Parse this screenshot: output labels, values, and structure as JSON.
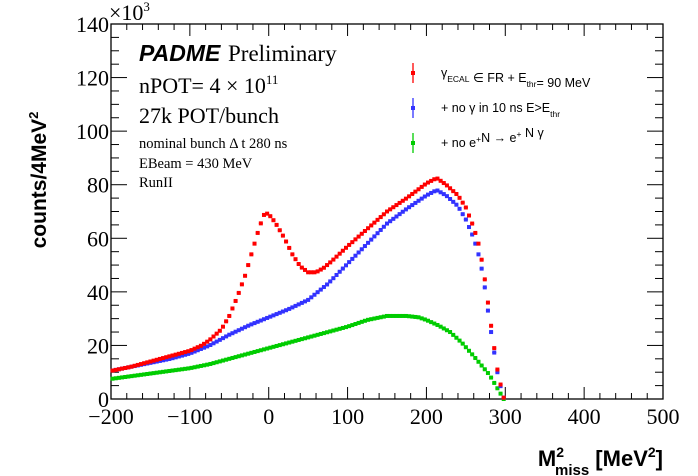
{
  "chart_data": {
    "type": "scatter",
    "title": "",
    "xlabel": {
      "main": "M",
      "sup": "2",
      "sub": "miss",
      "unit_prefix": " [MeV",
      "unit_sup": "2",
      "unit_suffix": "]"
    },
    "ylabel": "counts/4MeV²",
    "ylabel_parts": {
      "main": "counts/4MeV",
      "sup": "2"
    },
    "y_multiplier": {
      "prefix": "×10",
      "exp": "3"
    },
    "xlim": [
      -200,
      500
    ],
    "ylim": [
      0,
      140
    ],
    "x_ticks": [
      "−200",
      "−100",
      "0",
      "100",
      "200",
      "300",
      "400",
      "500"
    ],
    "x_tick_values": [
      -200,
      -100,
      0,
      100,
      200,
      300,
      400,
      500
    ],
    "y_ticks": [
      "0",
      "20",
      "40",
      "60",
      "80",
      "100",
      "120",
      "140"
    ],
    "y_tick_values": [
      0,
      20,
      40,
      60,
      80,
      100,
      120,
      140
    ],
    "grid": false,
    "bin_width": 4,
    "annotations": {
      "experiment": "PADME",
      "status": "Preliminary",
      "npot_prefix": "nPOT= 4 × 10",
      "npot_exp": "11",
      "pot_per_bunch": "27k POT/bunch",
      "bunch_length": "nominal bunch Δ t 280 ns",
      "ebeam": "EBeam = 430 MeV",
      "run": "RunII"
    },
    "legend_position": "top-right",
    "series": [
      {
        "name": "γ_ECAL ∈ FR + E_thr= 90 MeV",
        "color": "#ff0000",
        "legend": {
          "parts": [
            [
              "γ",
              ""
            ],
            [
              "ECAL",
              "sub"
            ],
            [
              " ∈ FR + E",
              ""
            ],
            [
              "thr",
              "sub"
            ],
            [
              "= 90 MeV",
              ""
            ]
          ]
        },
        "anchors": [
          [
            -200,
            10.5
          ],
          [
            -175,
            12
          ],
          [
            -150,
            14
          ],
          [
            -125,
            16
          ],
          [
            -100,
            18
          ],
          [
            -85,
            20
          ],
          [
            -75,
            22
          ],
          [
            -60,
            26
          ],
          [
            -50,
            31
          ],
          [
            -40,
            38
          ],
          [
            -30,
            46
          ],
          [
            -20,
            56
          ],
          [
            -12,
            64
          ],
          [
            -5,
            69.5
          ],
          [
            0,
            69
          ],
          [
            8,
            66
          ],
          [
            20,
            60
          ],
          [
            30,
            54
          ],
          [
            40,
            49.5
          ],
          [
            50,
            47.3
          ],
          [
            60,
            47.3
          ],
          [
            70,
            49
          ],
          [
            80,
            51.5
          ],
          [
            100,
            57
          ],
          [
            125,
            63.5
          ],
          [
            150,
            70
          ],
          [
            175,
            75
          ],
          [
            200,
            80.5
          ],
          [
            213,
            82.5
          ],
          [
            225,
            80
          ],
          [
            240,
            76
          ],
          [
            250,
            71.5
          ],
          [
            260,
            64
          ],
          [
            266,
            58
          ],
          [
            272,
            49
          ],
          [
            278,
            36
          ],
          [
            284,
            23
          ],
          [
            290,
            11
          ],
          [
            295,
            4
          ],
          [
            298,
            0.5
          ]
        ]
      },
      {
        "name": "+ no γ in 10 ns E>E_thr",
        "color": "#3333ff",
        "legend": {
          "parts": [
            [
              "+ no γ in 10 ns E>E",
              ""
            ],
            [
              "thr",
              "sub"
            ]
          ]
        },
        "anchors": [
          [
            -200,
            10.5
          ],
          [
            -175,
            12
          ],
          [
            -150,
            13.5
          ],
          [
            -125,
            15
          ],
          [
            -100,
            17
          ],
          [
            -75,
            20
          ],
          [
            -50,
            24
          ],
          [
            -25,
            27.5
          ],
          [
            0,
            30.5
          ],
          [
            25,
            33.5
          ],
          [
            50,
            37
          ],
          [
            75,
            43
          ],
          [
            100,
            50.5
          ],
          [
            125,
            58
          ],
          [
            150,
            65.5
          ],
          [
            175,
            71
          ],
          [
            200,
            76
          ],
          [
            213,
            78
          ],
          [
            225,
            76
          ],
          [
            240,
            72
          ],
          [
            250,
            67
          ],
          [
            260,
            60
          ],
          [
            266,
            54
          ],
          [
            272,
            46
          ],
          [
            278,
            33
          ],
          [
            284,
            21
          ],
          [
            290,
            10
          ],
          [
            295,
            3.5
          ],
          [
            298,
            0.5
          ]
        ]
      },
      {
        "name": "+ no e⁺N → e⁺ N γ",
        "color": "#00cc00",
        "legend": {
          "parts": [
            [
              "+ no e",
              ""
            ],
            [
              "+",
              "sup"
            ],
            [
              "N → e",
              ""
            ],
            [
              "+",
              "sup"
            ],
            [
              " N γ",
              ""
            ]
          ]
        },
        "anchors": [
          [
            -200,
            7.5
          ],
          [
            -175,
            8.5
          ],
          [
            -150,
            9.5
          ],
          [
            -125,
            10.5
          ],
          [
            -100,
            11.5
          ],
          [
            -75,
            13
          ],
          [
            -50,
            15
          ],
          [
            -25,
            17
          ],
          [
            0,
            19
          ],
          [
            25,
            21
          ],
          [
            50,
            23
          ],
          [
            75,
            25
          ],
          [
            100,
            27
          ],
          [
            125,
            29.5
          ],
          [
            150,
            31
          ],
          [
            175,
            31
          ],
          [
            190,
            30.5
          ],
          [
            200,
            29.5
          ],
          [
            215,
            27.5
          ],
          [
            230,
            25
          ],
          [
            245,
            21
          ],
          [
            260,
            16
          ],
          [
            270,
            12.5
          ],
          [
            280,
            9
          ],
          [
            288,
            5
          ],
          [
            294,
            2
          ],
          [
            298,
            0
          ]
        ]
      }
    ]
  }
}
